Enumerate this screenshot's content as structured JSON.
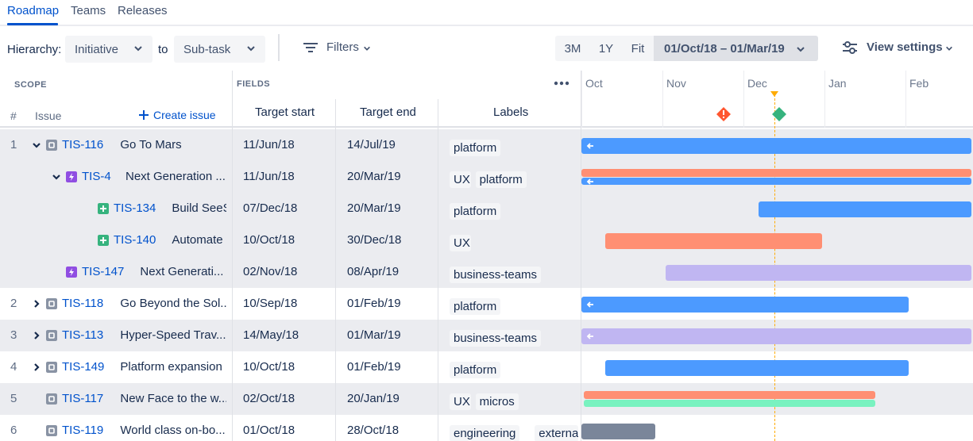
{
  "tabs": [
    {
      "label": "Roadmap",
      "active": true
    },
    {
      "label": "Teams",
      "active": false
    },
    {
      "label": "Releases",
      "active": false
    }
  ],
  "toolbar": {
    "hierarchy_label": "Hierarchy:",
    "from_value": "Initiative",
    "to_label": "to",
    "to_value": "Sub-task",
    "filters_label": "Filters",
    "zoom_options": [
      "3M",
      "1Y",
      "Fit"
    ],
    "date_range": "01/Oct/18 – 01/Mar/19",
    "view_settings_label": "View settings"
  },
  "headers": {
    "scope": "SCOPE",
    "fields": "FIELDS",
    "num": "#",
    "issue": "Issue",
    "create_issue": "Create issue",
    "target_start": "Target start",
    "target_end": "Target end",
    "labels": "Labels"
  },
  "months": [
    "Oct",
    "Nov",
    "Dec",
    "Jan",
    "Feb"
  ],
  "colors": {
    "blue": "#4c9aff",
    "red": "#ff8f73",
    "purple": "#c0b6f2",
    "green": "#79f2c0",
    "gray": "#7a869a",
    "initiative": "#8993a4",
    "epic": "#904ee2",
    "story": "#36b37e",
    "link": "#0052cc"
  },
  "rows": [
    {
      "num": "1",
      "key": "TIS-116",
      "summary": "Go To Mars",
      "start": "11/Jun/18",
      "end": "14/Jul/19",
      "labels": [
        "platform"
      ],
      "type": "initiative",
      "indent": 0,
      "toggle": "down",
      "shade": true,
      "bars": [
        {
          "color": "blue",
          "from": 0,
          "to": 1,
          "arrow": true
        }
      ]
    },
    {
      "num": "",
      "key": "TIS-4",
      "summary": "Next Generation ...",
      "start": "11/Jun/18",
      "end": "20/Mar/19",
      "labels": [
        "UX",
        "platform"
      ],
      "type": "epic",
      "indent": 1,
      "toggle": "down",
      "shade": true,
      "bars": [
        {
          "color": "red",
          "from": 0,
          "to": 1,
          "arrow": false,
          "half": "top"
        },
        {
          "color": "blue",
          "from": 0,
          "to": 1,
          "arrow": true,
          "half": "bottom"
        }
      ]
    },
    {
      "num": "",
      "key": "TIS-134",
      "summary": "Build SeeS...",
      "start": "07/Dec/18",
      "end": "20/Mar/19",
      "labels": [
        "platform"
      ],
      "type": "story",
      "indent": 2,
      "toggle": "",
      "shade": true,
      "bars": [
        {
          "color": "blue",
          "from": 0.453,
          "to": 1,
          "arrow": false
        }
      ]
    },
    {
      "num": "",
      "key": "TIS-140",
      "summary": "Automate ...",
      "start": "10/Oct/18",
      "end": "30/Dec/18",
      "labels": [
        "UX"
      ],
      "type": "story",
      "indent": 2,
      "toggle": "",
      "shade": true,
      "bars": [
        {
          "color": "red",
          "from": 0.061,
          "to": 0.615,
          "arrow": false
        }
      ]
    },
    {
      "num": "",
      "key": "TIS-147",
      "summary": "Next Generati...",
      "start": "02/Nov/18",
      "end": "08/Apr/19",
      "labels": [
        "business-teams"
      ],
      "type": "epic",
      "indent": 1,
      "toggle": "",
      "shade": true,
      "bars": [
        {
          "color": "purple",
          "from": 0.215,
          "to": 1,
          "arrow": false
        }
      ]
    },
    {
      "num": "2",
      "key": "TIS-118",
      "summary": "Go Beyond the Sol...",
      "start": "10/Sep/18",
      "end": "01/Feb/19",
      "labels": [
        "platform"
      ],
      "type": "initiative",
      "indent": 0,
      "toggle": "right",
      "shade": false,
      "bars": [
        {
          "color": "blue",
          "from": 0,
          "to": 0.835,
          "arrow": true
        }
      ]
    },
    {
      "num": "3",
      "key": "TIS-113",
      "summary": "Hyper-Speed Trav...",
      "start": "14/May/18",
      "end": "01/Mar/19",
      "labels": [
        "business-teams"
      ],
      "type": "initiative",
      "indent": 0,
      "toggle": "right",
      "shade": true,
      "bars": [
        {
          "color": "purple",
          "from": 0,
          "to": 1,
          "arrow": true
        }
      ]
    },
    {
      "num": "4",
      "key": "TIS-149",
      "summary": "Platform expansion",
      "start": "10/Oct/18",
      "end": "01/Feb/19",
      "labels": [
        "platform"
      ],
      "type": "initiative",
      "indent": 0,
      "toggle": "right",
      "shade": false,
      "bars": [
        {
          "color": "blue",
          "from": 0.061,
          "to": 0.835,
          "arrow": false
        }
      ]
    },
    {
      "num": "5",
      "key": "TIS-117",
      "summary": "New Face to the w...",
      "start": "02/Oct/18",
      "end": "20/Jan/19",
      "labels": [
        "UX",
        "micros"
      ],
      "type": "initiative",
      "indent": 0,
      "toggle": "",
      "shade": true,
      "bars": [
        {
          "color": "red",
          "from": 0.006,
          "to": 0.75,
          "arrow": false,
          "half": "top"
        },
        {
          "color": "green",
          "from": 0.006,
          "to": 0.75,
          "arrow": false,
          "half": "bottom"
        }
      ]
    },
    {
      "num": "6",
      "key": "TIS-119",
      "summary": "World class on-bo...",
      "start": "01/Oct/18",
      "end": "28/Oct/18",
      "labels": [
        "engineering",
        "external-d"
      ],
      "type": "initiative",
      "indent": 0,
      "toggle": "",
      "shade": false,
      "bars": [
        {
          "color": "gray",
          "from": 0,
          "to": 0.188,
          "arrow": false
        }
      ]
    }
  ]
}
